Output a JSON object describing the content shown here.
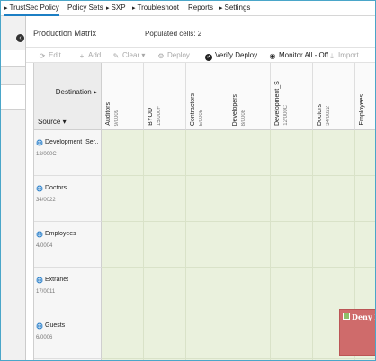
{
  "nav": {
    "tabs": [
      {
        "label": "TrustSec Policy",
        "active": true
      },
      {
        "label": "Policy Sets",
        "active": false
      },
      {
        "label": "SXP",
        "active": false
      },
      {
        "label": "Troubleshoot",
        "active": false
      },
      {
        "label": "Reports",
        "active": false
      },
      {
        "label": "Settings",
        "active": false
      }
    ]
  },
  "page": {
    "title": "Production Matrix",
    "populated": "Populated cells: 2"
  },
  "toolbar": {
    "edit": "Edit",
    "add": "Add",
    "clear": "Clear",
    "deploy": "Deploy",
    "verify_deploy": "Verify Deploy",
    "monitor_all": "Monitor All - Off",
    "import": "Import"
  },
  "matrix": {
    "destination_label": "Destination",
    "source_label": "Source",
    "columns": [
      {
        "name": "Auditors",
        "tag": "9/0009"
      },
      {
        "name": "BYOD",
        "tag": "15/000F"
      },
      {
        "name": "Contractors",
        "tag": "5/0005"
      },
      {
        "name": "Developers",
        "tag": "8/0008"
      },
      {
        "name": "Development_Ser...",
        "tag": "12/000C"
      },
      {
        "name": "Doctors",
        "tag": "34/0022"
      },
      {
        "name": "Employees",
        "tag": ""
      }
    ],
    "rows": [
      {
        "name": "Development_Ser...",
        "tag": "12/000C"
      },
      {
        "name": "Doctors",
        "tag": "34/0022"
      },
      {
        "name": "Employees",
        "tag": "4/0004"
      },
      {
        "name": "Extranet",
        "tag": "17/0011"
      },
      {
        "name": "Guests",
        "tag": "6/0006"
      }
    ],
    "cell_label": "Deny IP",
    "colors": {
      "cell_bg": "#eaf1dd",
      "deny": "#cf6b6b",
      "accent": "#1c7fc4"
    }
  }
}
